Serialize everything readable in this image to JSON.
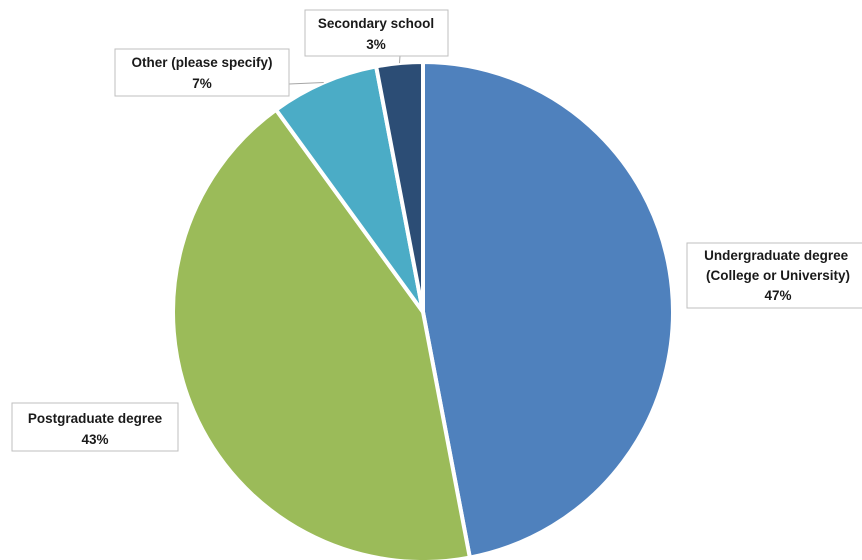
{
  "chart_data": {
    "type": "pie",
    "title": "",
    "slices": [
      {
        "label_lines": [
          "Undergraduate degree",
          "(College or University)"
        ],
        "value": 47,
        "pct_label": "47%",
        "color": "#4f81bd"
      },
      {
        "label_lines": [
          "Postgraduate degree"
        ],
        "value": 43,
        "pct_label": "43%",
        "color": "#9bbb59"
      },
      {
        "label_lines": [
          "Other (please specify)"
        ],
        "value": 7,
        "pct_label": "7%",
        "color": "#4bacc6"
      },
      {
        "label_lines": [
          "Secondary school"
        ],
        "value": 3,
        "pct_label": "3%",
        "color": "#2c4d75"
      }
    ],
    "legend": "none",
    "data_labels": "callout"
  }
}
